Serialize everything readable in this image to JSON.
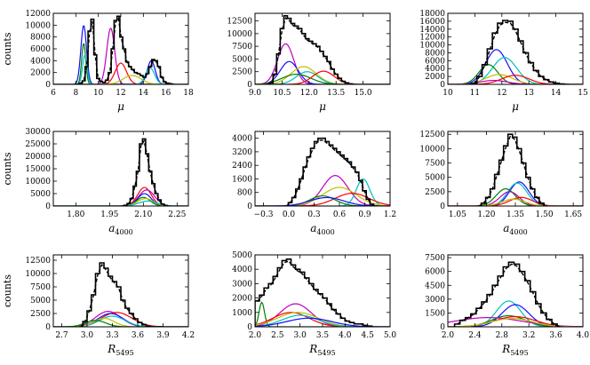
{
  "chart_data": [
    {
      "type": "histogram",
      "ylabel": "counts",
      "xlabel_main": "μ",
      "xlabel_sub": "",
      "xlim": [
        6,
        18
      ],
      "ylim": [
        0,
        12000
      ],
      "xticks": [
        "6",
        "8",
        "10",
        "12",
        "14",
        "16",
        "18"
      ],
      "xtick_values": [
        6,
        8,
        10,
        12,
        14,
        16,
        18
      ],
      "yticks": [
        "0",
        "2000",
        "4000",
        "6000",
        "8000",
        "10000",
        "12000"
      ],
      "ytick_values": [
        0,
        2000,
        4000,
        6000,
        8000,
        10000,
        12000
      ],
      "hist_bins": [
        7.8,
        16.8
      ],
      "hist": [
        0,
        0,
        200,
        600,
        3000,
        9000,
        11000,
        5000,
        1000,
        500,
        300,
        700,
        2000,
        6000,
        10800,
        11500,
        8000,
        6000,
        3800,
        3000,
        2500,
        2000,
        1800,
        1500,
        1200,
        1800,
        3000,
        4200,
        4000,
        3000,
        1200,
        400,
        200,
        100,
        0
      ],
      "components": [
        {
          "name": "blue",
          "color": "#1010ff",
          "mu": 8.7,
          "sigma": 0.25,
          "amp": 10000
        },
        {
          "name": "green",
          "color": "#008000",
          "mu": 8.7,
          "sigma": 0.18,
          "amp": 7000
        },
        {
          "name": "cyan",
          "color": "#00bfbf",
          "mu": 8.8,
          "sigma": 0.2,
          "amp": 5000
        },
        {
          "name": "magenta",
          "color": "#bf00bf",
          "mu": 11.1,
          "sigma": 0.35,
          "amp": 9500
        },
        {
          "name": "red",
          "color": "#ff0000",
          "mu": 12.0,
          "sigma": 0.5,
          "amp": 3600
        },
        {
          "name": "blue2",
          "color": "#1010ff",
          "mu": 14.7,
          "sigma": 0.35,
          "amp": 4000
        },
        {
          "name": "cyan2",
          "color": "#00bfbf",
          "mu": 14.6,
          "sigma": 0.4,
          "amp": 2800
        },
        {
          "name": "yellow",
          "color": "#bfbf00",
          "mu": 13.0,
          "sigma": 0.8,
          "amp": 1500
        }
      ]
    },
    {
      "type": "histogram",
      "ylabel": "",
      "xlabel_main": "μ",
      "xlabel_sub": "",
      "xlim": [
        9,
        16.5
      ],
      "ylim": [
        0,
        14000
      ],
      "xticks": [
        "9.0",
        "10.5",
        "12.0",
        "13.5",
        "15.0"
      ],
      "xtick_values": [
        9,
        10.5,
        12,
        13.5,
        15
      ],
      "yticks": [
        "0",
        "2500",
        "5000",
        "7500",
        "10000",
        "12500"
      ],
      "ytick_values": [
        0,
        2500,
        5000,
        7500,
        10000,
        12500
      ],
      "hist_bins": [
        9.6,
        14.6
      ],
      "hist": [
        0,
        300,
        2000,
        6000,
        11000,
        13500,
        13000,
        12000,
        11500,
        11000,
        10000,
        9000,
        8500,
        8000,
        7500,
        6500,
        5500,
        4500,
        3000,
        2000,
        1200,
        600,
        300,
        100,
        0
      ],
      "components": [
        {
          "name": "magenta",
          "color": "#bf00bf",
          "mu": 10.7,
          "sigma": 0.45,
          "amp": 8000
        },
        {
          "name": "blue",
          "color": "#1010ff",
          "mu": 10.9,
          "sigma": 0.5,
          "amp": 4500
        },
        {
          "name": "yellow",
          "color": "#bfbf00",
          "mu": 11.7,
          "sigma": 0.7,
          "amp": 3500
        },
        {
          "name": "cyan",
          "color": "#00bfbf",
          "mu": 11.9,
          "sigma": 0.6,
          "amp": 2500
        },
        {
          "name": "green",
          "color": "#008000",
          "mu": 11.3,
          "sigma": 0.8,
          "amp": 2000
        },
        {
          "name": "red",
          "color": "#ff0000",
          "mu": 12.8,
          "sigma": 0.6,
          "amp": 2600
        }
      ]
    },
    {
      "type": "histogram",
      "ylabel": "",
      "xlabel_main": "μ",
      "xlabel_sub": "",
      "xlim": [
        10,
        15
      ],
      "ylim": [
        0,
        18000
      ],
      "xticks": [
        "10",
        "11",
        "12",
        "13",
        "14",
        "15"
      ],
      "xtick_values": [
        10,
        11,
        12,
        13,
        14,
        15
      ],
      "yticks": [
        "0",
        "2000",
        "4000",
        "6000",
        "8000",
        "10000",
        "12000",
        "14000",
        "16000",
        "18000"
      ],
      "ytick_values": [
        0,
        2000,
        4000,
        6000,
        8000,
        10000,
        12000,
        14000,
        16000,
        18000
      ],
      "hist_bins": [
        10.7,
        14.5
      ],
      "hist": [
        0,
        300,
        2000,
        5000,
        9000,
        13000,
        15500,
        16200,
        16000,
        14000,
        11000,
        8000,
        5500,
        3500,
        2000,
        1200,
        600,
        300,
        100,
        0
      ],
      "components": [
        {
          "name": "blue",
          "color": "#1010ff",
          "mu": 11.8,
          "sigma": 0.4,
          "amp": 8800
        },
        {
          "name": "cyan",
          "color": "#00bfbf",
          "mu": 12.1,
          "sigma": 0.45,
          "amp": 6800
        },
        {
          "name": "green",
          "color": "#008000",
          "mu": 11.5,
          "sigma": 0.35,
          "amp": 5000
        },
        {
          "name": "yellow",
          "color": "#bfbf00",
          "mu": 11.9,
          "sigma": 0.5,
          "amp": 2500
        },
        {
          "name": "red",
          "color": "#ff0000",
          "mu": 12.5,
          "sigma": 0.5,
          "amp": 2300
        },
        {
          "name": "magenta",
          "color": "#bf00bf",
          "mu": 11.7,
          "sigma": 0.5,
          "amp": 1000
        }
      ]
    },
    {
      "type": "histogram",
      "ylabel": "counts",
      "xlabel_main": "a",
      "xlabel_sub": "4000",
      "xlim": [
        1.7,
        2.3
      ],
      "ylim": [
        0,
        30000
      ],
      "xticks": [
        "1.80",
        "1.95",
        "2.10",
        "2.25"
      ],
      "xtick_values": [
        1.8,
        1.95,
        2.1,
        2.25
      ],
      "yticks": [
        "0",
        "5000",
        "10000",
        "15000",
        "20000",
        "25000",
        "30000"
      ],
      "ytick_values": [
        0,
        5000,
        10000,
        15000,
        20000,
        25000,
        30000
      ],
      "hist_bins": [
        2.0,
        2.22
      ],
      "hist": [
        0,
        300,
        1000,
        3000,
        8000,
        14000,
        25000,
        27000,
        21000,
        14000,
        9000,
        5000,
        2500,
        800,
        200,
        0
      ],
      "components": [
        {
          "name": "red",
          "color": "#ff0000",
          "mu": 2.105,
          "sigma": 0.03,
          "amp": 7500
        },
        {
          "name": "magenta",
          "color": "#bf00bf",
          "mu": 2.115,
          "sigma": 0.035,
          "amp": 6500
        },
        {
          "name": "blue",
          "color": "#1010ff",
          "mu": 2.105,
          "sigma": 0.03,
          "amp": 5000
        },
        {
          "name": "green",
          "color": "#008000",
          "mu": 2.1,
          "sigma": 0.03,
          "amp": 3500
        },
        {
          "name": "yellow",
          "color": "#bfbf00",
          "mu": 2.11,
          "sigma": 0.035,
          "amp": 3000
        },
        {
          "name": "cyan",
          "color": "#00bfbf",
          "mu": 2.12,
          "sigma": 0.04,
          "amp": 2000
        }
      ]
    },
    {
      "type": "histogram",
      "ylabel": "",
      "xlabel_main": "a",
      "xlabel_sub": "4000",
      "xlim": [
        -0.4,
        1.2
      ],
      "ylim": [
        0,
        4400
      ],
      "xticks": [
        "−0.3",
        "0.0",
        "0.3",
        "0.6",
        "0.9",
        "1.2"
      ],
      "xtick_values": [
        -0.3,
        0,
        0.3,
        0.6,
        0.9,
        1.2
      ],
      "yticks": [
        "0",
        "800",
        "1600",
        "2400",
        "3200",
        "4000"
      ],
      "ytick_values": [
        0,
        800,
        1600,
        2400,
        3200,
        4000
      ],
      "hist_bins": [
        -0.05,
        1.05
      ],
      "hist": [
        0,
        200,
        500,
        1000,
        1600,
        2300,
        2900,
        3400,
        3800,
        4000,
        4000,
        3800,
        3600,
        3400,
        3200,
        3000,
        2800,
        2600,
        2300,
        2000,
        1500,
        900,
        400,
        100,
        0
      ],
      "components": [
        {
          "name": "magenta",
          "color": "#bf00bf",
          "mu": 0.55,
          "sigma": 0.15,
          "amp": 1800
        },
        {
          "name": "cyan",
          "color": "#00bfbf",
          "mu": 0.88,
          "sigma": 0.08,
          "amp": 1600
        },
        {
          "name": "yellow",
          "color": "#bfbf00",
          "mu": 0.6,
          "sigma": 0.2,
          "amp": 1100
        },
        {
          "name": "red",
          "color": "#ff0000",
          "mu": 0.75,
          "sigma": 0.2,
          "amp": 750
        },
        {
          "name": "green",
          "color": "#008000",
          "mu": 0.4,
          "sigma": 0.15,
          "amp": 600
        },
        {
          "name": "blue",
          "color": "#1010ff",
          "mu": 0.45,
          "sigma": 0.2,
          "amp": 500
        }
      ]
    },
    {
      "type": "histogram",
      "ylabel": "",
      "xlabel_main": "a",
      "xlabel_sub": "4000",
      "xlim": [
        1.0,
        1.7
      ],
      "ylim": [
        0,
        13000
      ],
      "xticks": [
        "1.05",
        "1.20",
        "1.35",
        "1.50",
        "1.65"
      ],
      "xtick_values": [
        1.05,
        1.2,
        1.35,
        1.5,
        1.65
      ],
      "yticks": [
        "0",
        "2500",
        "5000",
        "7500",
        "10000",
        "12500"
      ],
      "ytick_values": [
        0,
        2500,
        5000,
        7500,
        10000,
        12500
      ],
      "hist_bins": [
        1.15,
        1.52
      ],
      "hist": [
        0,
        500,
        1500,
        3000,
        5500,
        8000,
        10500,
        12500,
        12000,
        10000,
        7500,
        5000,
        3000,
        1500,
        500,
        0
      ],
      "components": [
        {
          "name": "blue",
          "color": "#1010ff",
          "mu": 1.37,
          "sigma": 0.05,
          "amp": 4200
        },
        {
          "name": "cyan",
          "color": "#00bfbf",
          "mu": 1.36,
          "sigma": 0.05,
          "amp": 4000
        },
        {
          "name": "green",
          "color": "#008000",
          "mu": 1.3,
          "sigma": 0.05,
          "amp": 3000
        },
        {
          "name": "magenta",
          "color": "#bf00bf",
          "mu": 1.32,
          "sigma": 0.05,
          "amp": 2500
        },
        {
          "name": "red",
          "color": "#ff0000",
          "mu": 1.38,
          "sigma": 0.06,
          "amp": 1500
        },
        {
          "name": "yellow",
          "color": "#bfbf00",
          "mu": 1.34,
          "sigma": 0.06,
          "amp": 1200
        }
      ]
    },
    {
      "type": "histogram",
      "ylabel": "counts",
      "xlabel_main": "R",
      "xlabel_sub": "5495",
      "xlim": [
        2.6,
        4.2
      ],
      "ylim": [
        0,
        13500
      ],
      "xticks": [
        "2.7",
        "3.0",
        "3.3",
        "3.6",
        "3.9",
        "4.2"
      ],
      "xtick_values": [
        2.7,
        3.0,
        3.3,
        3.6,
        3.9,
        4.2
      ],
      "yticks": [
        "0",
        "2500",
        "5000",
        "7500",
        "10000",
        "12500"
      ],
      "ytick_values": [
        0,
        2500,
        5000,
        7500,
        10000,
        12500
      ],
      "hist_bins": [
        2.9,
        3.9
      ],
      "hist": [
        0,
        1000,
        3000,
        6000,
        10000,
        12000,
        11000,
        9500,
        8500,
        7500,
        5000,
        3500,
        2500,
        1500,
        800,
        400,
        100,
        0,
        0,
        0
      ],
      "components": [
        {
          "name": "magenta",
          "color": "#bf00bf",
          "mu": 3.25,
          "sigma": 0.15,
          "amp": 2900
        },
        {
          "name": "red",
          "color": "#ff0000",
          "mu": 3.35,
          "sigma": 0.18,
          "amp": 2700
        },
        {
          "name": "blue",
          "color": "#1010ff",
          "mu": 3.28,
          "sigma": 0.15,
          "amp": 2500
        },
        {
          "name": "cyan",
          "color": "#00bfbf",
          "mu": 3.3,
          "sigma": 0.15,
          "amp": 2000
        },
        {
          "name": "yellow",
          "color": "#bfbf00",
          "mu": 3.2,
          "sigma": 0.12,
          "amp": 1600
        },
        {
          "name": "green",
          "color": "#008000",
          "mu": 3.1,
          "sigma": 0.12,
          "amp": 1200
        }
      ]
    },
    {
      "type": "histogram",
      "ylabel": "",
      "xlabel_main": "R",
      "xlabel_sub": "5495",
      "xlim": [
        2.0,
        5.0
      ],
      "ylim": [
        0,
        5000
      ],
      "xticks": [
        "2.0",
        "2.5",
        "3.0",
        "3.5",
        "4.0",
        "4.5",
        "5.0"
      ],
      "xtick_values": [
        2,
        2.5,
        3,
        3.5,
        4,
        4.5,
        5
      ],
      "yticks": [
        "0",
        "1000",
        "2000",
        "3000",
        "4000",
        "5000"
      ],
      "ytick_values": [
        0,
        1000,
        2000,
        3000,
        4000,
        5000
      ],
      "hist_bins": [
        2.0,
        4.6
      ],
      "hist": [
        1800,
        2200,
        2700,
        3000,
        3500,
        4100,
        4600,
        4700,
        4300,
        4000,
        3800,
        3400,
        3000,
        2600,
        2300,
        2000,
        1600,
        1200,
        900,
        600,
        400,
        300,
        200,
        200,
        100,
        50
      ],
      "components": [
        {
          "name": "green",
          "color": "#008000",
          "mu": 2.15,
          "sigma": 0.06,
          "amp": 1700
        },
        {
          "name": "magenta",
          "color": "#bf00bf",
          "mu": 2.9,
          "sigma": 0.35,
          "amp": 1600
        },
        {
          "name": "red",
          "color": "#ff0000",
          "mu": 2.8,
          "sigma": 0.4,
          "amp": 1000
        },
        {
          "name": "yellow",
          "color": "#bfbf00",
          "mu": 2.95,
          "sigma": 0.45,
          "amp": 1000
        },
        {
          "name": "cyan",
          "color": "#00bfbf",
          "mu": 3.0,
          "sigma": 0.4,
          "amp": 800
        },
        {
          "name": "blue",
          "color": "#1010ff",
          "mu": 3.2,
          "sigma": 0.5,
          "amp": 600
        }
      ]
    },
    {
      "type": "histogram",
      "ylabel": "",
      "xlabel_main": "R",
      "xlabel_sub": "5495",
      "xlim": [
        2.0,
        4.0
      ],
      "ylim": [
        0,
        7800
      ],
      "xticks": [
        "2.0",
        "2.4",
        "2.8",
        "3.2",
        "3.6",
        "4.0"
      ],
      "xtick_values": [
        2,
        2.4,
        2.8,
        3.2,
        3.6,
        4.0
      ],
      "yticks": [
        "0",
        "1500",
        "3000",
        "4500",
        "6000",
        "7500"
      ],
      "ytick_values": [
        0,
        1500,
        3000,
        4500,
        6000,
        7500
      ],
      "hist_bins": [
        2.1,
        3.7
      ],
      "hist": [
        300,
        700,
        1000,
        1400,
        2000,
        2700,
        3500,
        4500,
        5500,
        6500,
        7000,
        6800,
        6000,
        5000,
        3800,
        2500,
        1500,
        800,
        300,
        0
      ],
      "components": [
        {
          "name": "cyan",
          "color": "#00bfbf",
          "mu": 2.9,
          "sigma": 0.18,
          "amp": 2800
        },
        {
          "name": "blue",
          "color": "#1010ff",
          "mu": 3.0,
          "sigma": 0.2,
          "amp": 2400
        },
        {
          "name": "green",
          "color": "#008000",
          "mu": 2.9,
          "sigma": 0.25,
          "amp": 1200
        },
        {
          "name": "red",
          "color": "#ff0000",
          "mu": 3.0,
          "sigma": 0.3,
          "amp": 1100
        },
        {
          "name": "magenta",
          "color": "#bf00bf",
          "mu": 2.6,
          "sigma": 0.5,
          "amp": 1000
        },
        {
          "name": "yellow",
          "color": "#bfbf00",
          "mu": 2.95,
          "sigma": 0.3,
          "amp": 900
        }
      ]
    }
  ]
}
